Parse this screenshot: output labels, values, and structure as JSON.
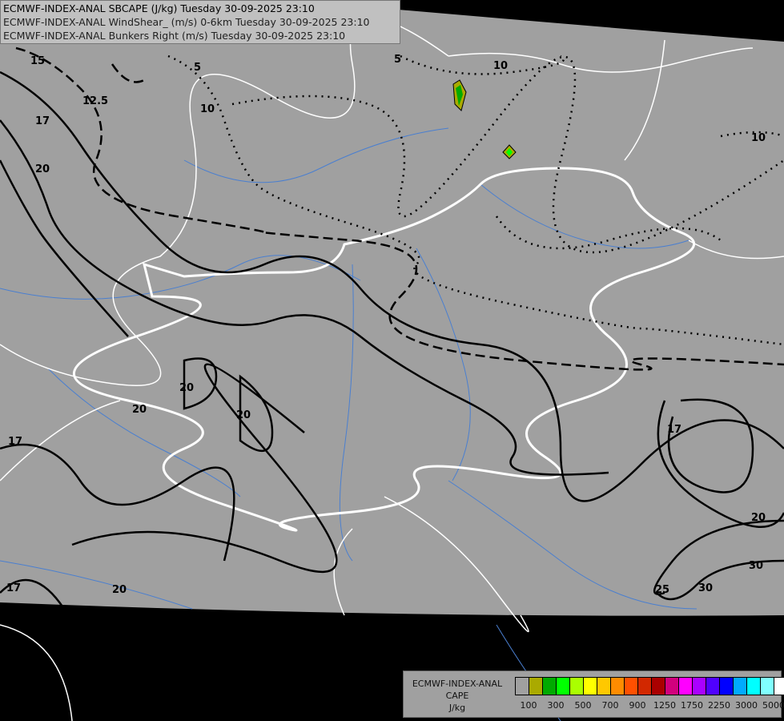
{
  "header": {
    "lines": [
      "ECMWF-INDEX-ANAL SBCAPE (J/kg) Tuesday 30-09-2025 23:10",
      "ECMWF-INDEX-ANAL WindShear_ (m/s) 0-6km Tuesday 30-09-2025 23:10",
      "ECMWF-INDEX-ANAL Bunkers Right (m/s) Tuesday 30-09-2025 23:10"
    ]
  },
  "legend": {
    "model": "ECMWF-INDEX-ANAL",
    "field": "CAPE",
    "unit": "J/kg",
    "colors": [
      "#a0a0a0",
      "#aaaa00",
      "#00aa00",
      "#00ff00",
      "#aaff00",
      "#ffff00",
      "#ffc800",
      "#ff8c00",
      "#ff5000",
      "#d22800",
      "#aa0000",
      "#d2007d",
      "#ff00ff",
      "#aa00ff",
      "#5000ff",
      "#0000ff",
      "#00aaff",
      "#00ffff",
      "#80ffff",
      "#ffffff"
    ],
    "tick_labels": [
      "100",
      "300",
      "500",
      "700",
      "900",
      "1250",
      "1750",
      "2250",
      "3000",
      "5000"
    ]
  },
  "map": {
    "colors": {
      "background": "#000000",
      "domain": "#a0a0a0",
      "borders": "#ffffff",
      "rivers": "#4a7fd0",
      "contours": "#000000"
    },
    "contour_labels": [
      "15",
      "12.5",
      "17",
      "20",
      "5",
      "10",
      "5",
      "10",
      "10",
      "20",
      "20",
      "20",
      "17",
      "20",
      "30",
      "25",
      "30",
      "17",
      "17",
      "20"
    ]
  }
}
